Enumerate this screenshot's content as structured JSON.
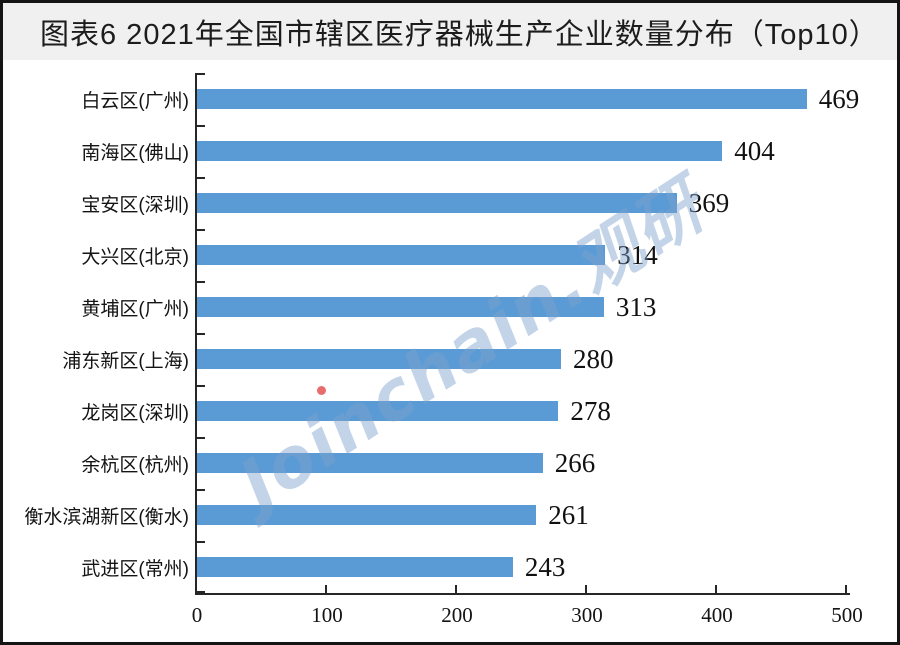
{
  "window": {
    "title": "图表6 2021年全国市辖区医疗器械生产企业数量分布（Top10）"
  },
  "watermark": {
    "text": "Joinchain.观研",
    "text_color": "#7da2cd",
    "dot_color": "#e23b3b"
  },
  "chart_data": {
    "type": "bar",
    "orientation": "horizontal",
    "title": "图表6 2021年全国市辖区医疗器械生产企业数量分布（Top10）",
    "categories": [
      "白云区(广州)",
      "南海区(佛山)",
      "宝安区(深圳)",
      "大兴区(北京)",
      "黄埔区(广州)",
      "浦东新区(上海)",
      "龙岗区(深圳)",
      "余杭区(杭州)",
      "衡水滨湖新区(衡水)",
      "武进区(常州)"
    ],
    "values": [
      469,
      404,
      369,
      314,
      313,
      280,
      278,
      266,
      261,
      243
    ],
    "data_labels": true,
    "xlabel": "",
    "ylabel": "",
    "xlim": [
      0,
      500
    ],
    "x_ticks": [
      0,
      100,
      200,
      300,
      400,
      500
    ],
    "bar_color": "#5B9BD5",
    "axis_color": "#262626",
    "grid": false,
    "legend": null
  }
}
